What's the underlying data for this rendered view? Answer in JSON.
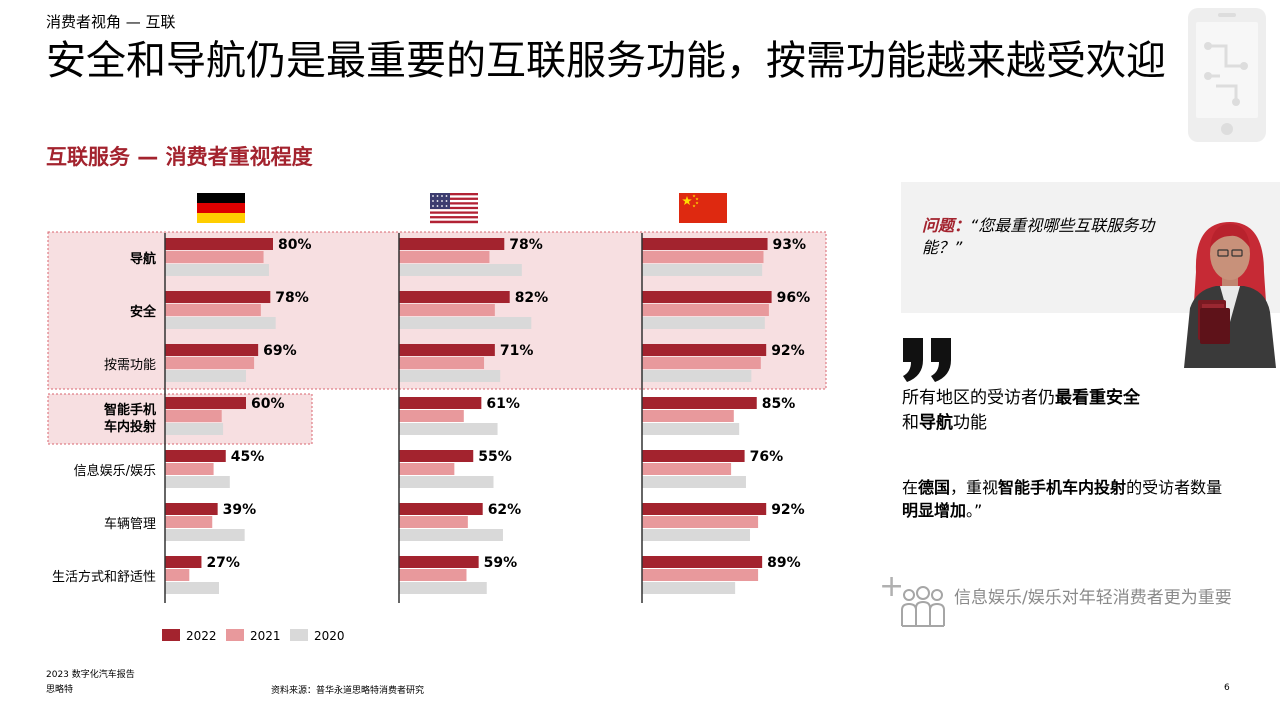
{
  "header": {
    "section_label": "消费者视角 — 互联",
    "title": "安全和导航仍是最重要的互联服务功能，按需功能越来越受欢迎",
    "subtitle": "互联服务 — 消费者重视程度"
  },
  "colors": {
    "brand": "#a3232e",
    "series_2022": "#a3232e",
    "series_2021": "#e8999c",
    "series_2020": "#d9d9d9",
    "highlight_fill": "#f7dfe1",
    "highlight_border": "#d9666f"
  },
  "chart_data": {
    "type": "bar",
    "orientation": "horizontal",
    "groups": [
      {
        "name": "Germany",
        "flag": "germany-flag"
      },
      {
        "name": "USA",
        "flag": "usa-flag"
      },
      {
        "name": "China",
        "flag": "china-flag"
      }
    ],
    "categories": [
      "导航",
      "安全",
      "按需功能",
      "智能手机\n车内投射",
      "信息娱乐/娱乐",
      "车辆管理",
      "生活方式和舒适性"
    ],
    "category_bold": [
      true,
      true,
      false,
      true,
      false,
      false,
      false
    ],
    "highlight_groups": [
      [
        0,
        1,
        2
      ],
      [
        3
      ]
    ],
    "series": [
      {
        "name": "2022",
        "values": [
          [
            80,
            78,
            69,
            60,
            45,
            39,
            27
          ],
          [
            78,
            82,
            71,
            61,
            55,
            62,
            59
          ],
          [
            93,
            96,
            92,
            85,
            76,
            92,
            89
          ]
        ],
        "value_labels": true
      },
      {
        "name": "2021",
        "values": [
          [
            73,
            71,
            66,
            42,
            36,
            35,
            18
          ],
          [
            67,
            71,
            63,
            48,
            41,
            51,
            50
          ],
          [
            90,
            94,
            88,
            68,
            66,
            86,
            86
          ]
        ]
      },
      {
        "name": "2020",
        "values": [
          [
            77,
            82,
            60,
            43,
            48,
            59,
            40
          ],
          [
            91,
            98,
            75,
            73,
            70,
            77,
            65
          ],
          [
            89,
            91,
            81,
            72,
            77,
            80,
            69
          ]
        ]
      }
    ],
    "value_unit": "%",
    "xlim": [
      0,
      100
    ],
    "legend": [
      "2022",
      "2021",
      "2020"
    ],
    "legend_position": "bottom-left"
  },
  "question": {
    "label": "问题：",
    "text": "“您最重视哪些互联服务功能？”"
  },
  "insight_1": {
    "t1": "所有地区的受访者仍",
    "b1": "最看重安全",
    "t2": "和",
    "b2": "导航",
    "t3": "功能"
  },
  "insight_2": {
    "t1": "在",
    "b1": "德国",
    "t2": "，重视",
    "b2": "智能手机车内投射",
    "t3": "的受访者数量",
    "b3": "明显增加",
    "t4": "。”"
  },
  "note": {
    "plus": "+",
    "text": "信息娱乐/娱乐对年轻消费者更为重要"
  },
  "footer": {
    "report_line1": "2023 数字化汽车报告",
    "report_line2": "思略特",
    "source": "资料来源：普华永道思略特消费者研究",
    "page_number": "6"
  }
}
